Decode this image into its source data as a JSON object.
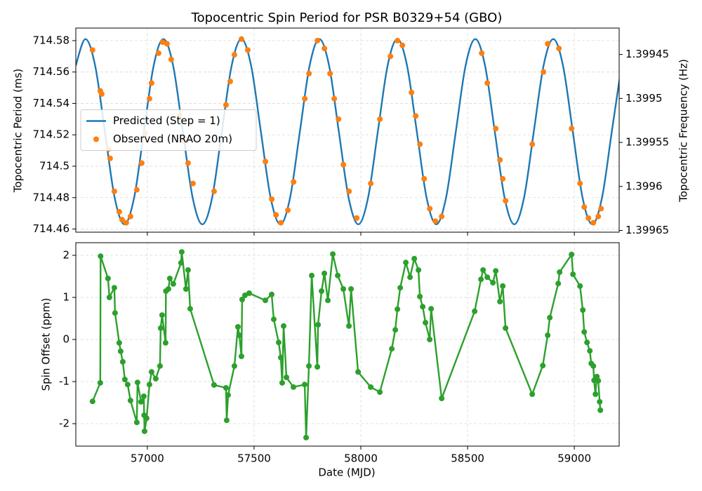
{
  "chart_data": [
    {
      "type": "line",
      "title": "Topocentric Spin Period for PSR B0329+54 (GBO)",
      "ylabel": "Topocentric Period (ms)",
      "y2label": "Topocentric Frequency (Hz)",
      "xlim": [
        56665,
        59210
      ],
      "ylim": [
        714.458,
        714.588
      ],
      "yticks": [
        714.46,
        714.48,
        714.5,
        714.52,
        714.54,
        714.56,
        714.58
      ],
      "y2lim": [
        1.399652,
        1.39942
      ],
      "y2ticks": [
        1.39945,
        1.3995,
        1.39955,
        1.3996,
        1.39965
      ],
      "grid": true,
      "legend": "center left",
      "series": [
        {
          "name": "Predicted (Step = 1)",
          "color": "#1f77b4",
          "line_shape": "spline",
          "marker": "none",
          "x": [
            56664.3,
            56710.0,
            56755.6,
            56801.3,
            56846.9,
            56892.6,
            56938.2,
            56983.9,
            57029.5,
            57075.2,
            57120.9,
            57166.5,
            57212.2,
            57257.8,
            57303.5,
            57349.1,
            57394.8,
            57440.5,
            57486.1,
            57531.8,
            57577.4,
            57623.1,
            57668.7,
            57714.4,
            57760.0,
            57805.7,
            57851.4,
            57897.0,
            57942.7,
            57988.3,
            58034.0,
            58079.6,
            58125.3,
            58170.9,
            58216.6,
            58262.3,
            58307.9,
            58353.6,
            58399.2,
            58444.9,
            58490.5,
            58536.2,
            58581.9,
            58627.5,
            58673.2,
            58718.8,
            58764.5,
            58810.1,
            58855.8,
            58901.4,
            58947.1,
            58992.8,
            59038.4,
            59084.1,
            59129.7,
            59175.4,
            59221.0
          ],
          "values": [
            714.564,
            714.581,
            714.564,
            714.522,
            714.48,
            714.463,
            714.48,
            714.522,
            714.564,
            714.581,
            714.564,
            714.522,
            714.48,
            714.463,
            714.48,
            714.522,
            714.564,
            714.581,
            714.564,
            714.522,
            714.48,
            714.463,
            714.48,
            714.522,
            714.564,
            714.581,
            714.564,
            714.522,
            714.48,
            714.463,
            714.48,
            714.522,
            714.564,
            714.581,
            714.564,
            714.522,
            714.48,
            714.463,
            714.48,
            714.522,
            714.564,
            714.581,
            714.564,
            714.522,
            714.48,
            714.463,
            714.48,
            714.522,
            714.564,
            714.581,
            714.564,
            714.522,
            714.48,
            714.463,
            714.48,
            714.522,
            714.564
          ]
        },
        {
          "name": "Observed (NRAO 20m)",
          "color": "#ff7f0e",
          "line_shape": "none",
          "marker": "circle",
          "x": [
            56743.4,
            56779.6,
            56786.2,
            56819.1,
            56825.7,
            56845.4,
            56868.5,
            56881.6,
            56901.3,
            56921.1,
            56950.7,
            56973.7,
            56990.2,
            57010.0,
            57019.8,
            57052.7,
            57072.4,
            57092.2,
            57111.9,
            57151.4,
            57171.1,
            57190.8,
            57213.8,
            57312.5,
            57368.4,
            57388.2,
            57407.9,
            57440.8,
            57470.4,
            57553.2,
            57582.8,
            57602.6,
            57625.5,
            57658.4,
            57684.7,
            57737.4,
            57757.1,
            57796.6,
            57829.5,
            57855.8,
            57875.5,
            57895.3,
            57918.3,
            57944.6,
            57980.7,
            58046.5,
            58089.3,
            58138.6,
            58171.5,
            58194.5,
            58237.3,
            58257.0,
            58276.8,
            58296.5,
            58322.8,
            58349.1,
            58378.7,
            58566.1,
            58592.4,
            58631.9,
            58651.6,
            58664.8,
            58677.9,
            58802.9,
            58855.5,
            58875.3,
            58927.9,
            58987.1,
            59026.6,
            59046.3,
            59066.0,
            59089.1,
            59112.1,
            59125.3
          ],
          "values": [
            714.574,
            714.548,
            714.546,
            714.511,
            714.505,
            714.484,
            714.471,
            714.466,
            714.464,
            714.468,
            714.485,
            714.502,
            714.521,
            714.543,
            714.553,
            714.572,
            714.579,
            714.578,
            714.568,
            714.532,
            714.516,
            714.502,
            714.489,
            714.484,
            714.539,
            714.554,
            714.571,
            714.581,
            714.574,
            714.503,
            714.479,
            714.469,
            714.464,
            714.472,
            714.49,
            714.543,
            714.559,
            714.58,
            714.575,
            714.559,
            714.543,
            714.53,
            714.501,
            714.484,
            714.467,
            714.489,
            714.53,
            714.57,
            714.58,
            714.577,
            714.547,
            714.532,
            714.514,
            714.492,
            714.473,
            714.465,
            714.468,
            714.572,
            714.553,
            714.524,
            714.504,
            714.492,
            714.478,
            714.514,
            714.56,
            714.578,
            714.575,
            714.524,
            714.489,
            714.474,
            714.467,
            714.464,
            714.468,
            714.473
          ]
        }
      ]
    },
    {
      "type": "line",
      "xlabel": "Date (MJD)",
      "ylabel": "Spin Offset (ppm)",
      "xlim": [
        56665,
        59210
      ],
      "xticks": [
        57000,
        57500,
        58000,
        58500,
        59000
      ],
      "ylim": [
        -2.533,
        2.3
      ],
      "yticks": [
        -2,
        -1,
        0,
        1,
        2
      ],
      "grid": true,
      "series": [
        {
          "color": "#2ca02c",
          "line_shape": "linear",
          "marker": "circle",
          "x": [
            56743.4,
            56779.6,
            56781.0,
            56815.8,
            56822.4,
            56845.4,
            56848.7,
            56868.5,
            56875.0,
            56884.9,
            56894.8,
            56907.9,
            56921.1,
            56950.7,
            56954.0,
            56970.4,
            56983.6,
            56985.0,
            56986.9,
            56996.7,
            57009.9,
            57019.8,
            57039.5,
            57059.2,
            57062.5,
            57069.1,
            57085.6,
            57087.0,
            57098.7,
            57105.3,
            57121.7,
            57157.9,
            57161.2,
            57180.9,
            57190.8,
            57200.7,
            57312.5,
            57368.4,
            57371.7,
            57378.3,
            57407.9,
            57424.4,
            57431.0,
            57440.8,
            57444.1,
            57457.3,
            57477.0,
            57552.7,
            57582.3,
            57592.2,
            57615.2,
            57625.1,
            57631.7,
            57638.3,
            57651.4,
            57684.3,
            57737.1,
            57743.7,
            57756.8,
            57770.0,
            57796.3,
            57799.6,
            57816.0,
            57829.2,
            57845.6,
            57868.7,
            57891.7,
            57918.0,
            57944.3,
            57954.2,
            57987.1,
            58046.3,
            58089.1,
            58145.0,
            58161.4,
            58171.3,
            58184.5,
            58210.8,
            58230.5,
            58250.3,
            58270.0,
            58276.6,
            58289.7,
            58302.9,
            58322.6,
            58329.2,
            58378.6,
            58533.1,
            58562.7,
            58572.6,
            58592.3,
            58618.6,
            58631.8,
            58651.5,
            58664.7,
            58677.8,
            58802.8,
            58852.2,
            58875.2,
            58885.1,
            58924.6,
            58931.1,
            58987.1,
            58993.6,
            59026.5,
            59039.7,
            59046.3,
            59059.4,
            59072.6,
            59079.2,
            59089.1,
            59092.4,
            59098.9,
            59105.5,
            59112.1,
            59118.7,
            59122.0
          ],
          "values": [
            -1.47,
            -1.03,
            1.98,
            1.45,
            1.0,
            1.23,
            0.63,
            -0.08,
            -0.28,
            -0.53,
            -0.95,
            -1.07,
            -1.45,
            -1.97,
            -1.02,
            -1.48,
            -1.35,
            -1.8,
            -2.18,
            -1.87,
            -1.07,
            -0.77,
            -0.93,
            -0.63,
            0.27,
            0.58,
            -0.08,
            1.15,
            1.2,
            1.45,
            1.32,
            1.82,
            2.08,
            1.2,
            1.65,
            0.73,
            -1.08,
            -1.15,
            -1.92,
            -1.32,
            -0.63,
            0.3,
            0.1,
            -0.4,
            0.95,
            1.05,
            1.1,
            0.93,
            1.07,
            0.48,
            -0.07,
            -0.43,
            -1.03,
            0.32,
            -0.9,
            -1.13,
            -1.07,
            -2.33,
            -0.63,
            1.52,
            -0.65,
            0.35,
            1.15,
            1.57,
            0.93,
            2.03,
            1.52,
            1.2,
            0.32,
            1.2,
            -0.77,
            -1.13,
            -1.25,
            -0.22,
            0.23,
            0.72,
            1.23,
            1.83,
            1.48,
            1.92,
            1.65,
            1.02,
            0.78,
            0.4,
            0.0,
            0.73,
            -1.4,
            0.67,
            1.43,
            1.65,
            1.48,
            1.35,
            1.63,
            0.9,
            1.27,
            0.27,
            -1.3,
            -0.62,
            0.1,
            0.52,
            1.33,
            1.6,
            2.02,
            1.55,
            1.27,
            0.7,
            0.18,
            -0.07,
            -0.27,
            -0.57,
            -0.63,
            -0.97,
            -1.3,
            -0.88,
            -0.98,
            -1.48,
            -1.68
          ]
        }
      ]
    }
  ]
}
